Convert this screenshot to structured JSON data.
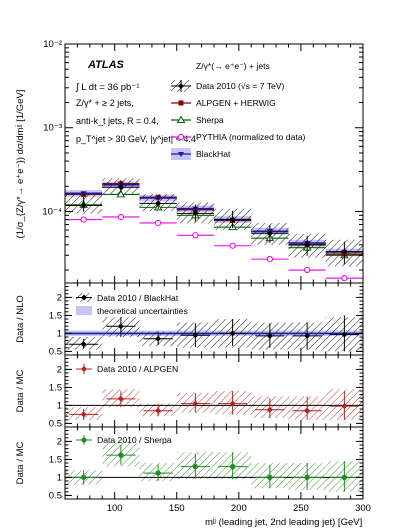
{
  "chart_data": {
    "type": "line",
    "main": {
      "ylabel": "(1/σ_{Z/γ*→ e⁺e⁻}) dσ/dmʲʲ [1/GeV]",
      "yscale": "log",
      "ylim": [
        1.4e-05,
        0.01
      ],
      "ytick_labels": [
        "10⁻²",
        "10⁻³",
        "10⁻⁴"
      ],
      "xlim": [
        60,
        300
      ],
      "bins": [
        [
          60,
          90
        ],
        [
          90,
          120
        ],
        [
          120,
          150
        ],
        [
          150,
          180
        ],
        [
          180,
          210
        ],
        [
          210,
          240
        ],
        [
          240,
          270
        ],
        [
          270,
          300
        ]
      ],
      "annotation": {
        "atlas": "ATLAS",
        "lumi": "∫ L dt = 36 pb⁻¹",
        "lines": [
          "Z/γ* + ≥ 2 jets,",
          "anti-k_t jets, R = 0.4,",
          "p_T^jet > 30 GeV, |y^jet| < 4.4"
        ]
      },
      "legend_title": "Z/γ*(→ e⁺e⁻) + jets",
      "series": [
        {
          "name": "Data 2010 (√s = 7 TeV)",
          "kind": "data",
          "color": "#000000",
          "values": [
            0.000118,
            0.000195,
            0.000125,
            9.5e-05,
            8e-05,
            5.5e-05,
            4e-05,
            3.3e-05
          ],
          "band_lo": [
            9.4e-05,
            0.00016,
            0.000101,
            7.2e-05,
            6e-05,
            4e-05,
            2.8e-05,
            2.2e-05
          ],
          "band_hi": [
            0.000158,
            0.00025,
            0.000162,
            0.000128,
            0.000108,
            7.3e-05,
            5.4e-05,
            4.6e-05
          ]
        },
        {
          "name": "ALPGEN + HERWIG",
          "kind": "alpgen",
          "color": "#8b0000",
          "values": [
            0.00016,
            0.000215,
            0.000148,
            0.000105,
            7.8e-05,
            5.8e-05,
            4e-05,
            3.1e-05
          ]
        },
        {
          "name": "Sherpa",
          "kind": "sherpa",
          "color": "#006400",
          "values": [
            0.00012,
            0.00016,
            0.000112,
            9e-05,
            6.5e-05,
            4.8e-05,
            3.7e-05,
            3e-05
          ]
        },
        {
          "name": "PYTHIA (normalized to data)",
          "kind": "pythia",
          "color": "#ee00ee",
          "values": [
            8e-05,
            8.6e-05,
            7.3e-05,
            5.2e-05,
            3.9e-05,
            2.7e-05,
            2e-05,
            1.6e-05
          ]
        },
        {
          "name": "BlackHat",
          "kind": "blackhat",
          "color": "#1a1aa0",
          "values": [
            0.000165,
            0.000208,
            0.000145,
            0.000108,
            8e-05,
            5.8e-05,
            4.2e-05,
            3.3e-05
          ],
          "band_lo": [
            0.00015,
            0.00019,
            0.000132,
            9.9e-05,
            7.3e-05,
            5.3e-05,
            3.8e-05,
            3e-05
          ],
          "band_hi": [
            0.00018,
            0.000228,
            0.000158,
            0.000118,
            8.8e-05,
            6.4e-05,
            4.6e-05,
            3.6e-05
          ]
        }
      ]
    },
    "ratios": [
      {
        "ylabel": "Data / NLO",
        "ylim": [
          0.4,
          2.4
        ],
        "ticks": [
          "0.5",
          "1",
          "1.5",
          "2"
        ],
        "legend": [
          "Data 2010 / BlackHat",
          "theoretical uncertainties"
        ],
        "color": "#000000",
        "marker": "diamond",
        "values": [
          0.7,
          1.2,
          0.85,
          0.95,
          1.0,
          0.93,
          0.93,
          0.97
        ],
        "err_lo": [
          0.58,
          0.9,
          0.68,
          0.62,
          0.65,
          0.6,
          0.55,
          0.5
        ],
        "err_hi": [
          0.85,
          1.45,
          1.05,
          1.28,
          1.4,
          1.28,
          1.3,
          1.5
        ],
        "band_lo": [
          0.55,
          0.9,
          0.65,
          0.6,
          0.6,
          0.55,
          0.55,
          0.5
        ],
        "band_hi": [
          0.9,
          1.45,
          1.05,
          1.3,
          1.4,
          1.3,
          1.3,
          1.45
        ],
        "theory_lo": [
          0.93,
          0.93,
          0.93,
          0.93,
          0.93,
          0.93,
          0.93,
          0.93
        ],
        "theory_hi": [
          1.08,
          1.08,
          1.08,
          1.08,
          1.08,
          1.08,
          1.08,
          1.08
        ]
      },
      {
        "ylabel": "Data / MC",
        "ylim": [
          0.4,
          2.4
        ],
        "ticks": [
          "0.5",
          "1",
          "1.5",
          "2"
        ],
        "legend": [
          "Data 2010 / ALPGEN"
        ],
        "color": "#b22222",
        "marker": "diamond",
        "values": [
          0.75,
          1.18,
          0.85,
          1.05,
          1.05,
          0.88,
          0.85,
          0.98
        ],
        "err_lo": [
          0.6,
          0.95,
          0.7,
          0.8,
          0.75,
          0.65,
          0.6,
          0.6
        ],
        "err_hi": [
          0.9,
          1.4,
          1.05,
          1.35,
          1.4,
          1.2,
          1.25,
          1.4
        ],
        "band_lo": [
          0.6,
          0.95,
          0.7,
          0.8,
          0.75,
          0.65,
          0.6,
          0.6
        ],
        "band_hi": [
          0.95,
          1.45,
          1.05,
          1.35,
          1.4,
          1.25,
          1.25,
          1.45
        ]
      },
      {
        "ylabel": "Data / MC",
        "ylim": [
          0.4,
          2.4
        ],
        "ticks": [
          "0.5",
          "1",
          "1.5",
          "2"
        ],
        "legend": [
          "Data 2010 / Sherpa"
        ],
        "color": "#228b22",
        "marker": "circle",
        "values": [
          1.0,
          1.62,
          1.12,
          1.3,
          1.3,
          1.0,
          1.0,
          1.0
        ],
        "err_lo": [
          0.8,
          1.35,
          0.9,
          0.95,
          0.95,
          0.7,
          0.65,
          0.6
        ],
        "err_hi": [
          1.2,
          1.9,
          1.35,
          1.65,
          1.7,
          1.35,
          1.4,
          1.45
        ],
        "band_lo": [
          0.8,
          1.3,
          0.9,
          0.95,
          0.95,
          0.7,
          0.65,
          0.6
        ],
        "band_hi": [
          1.2,
          1.95,
          1.4,
          1.7,
          1.7,
          1.4,
          1.4,
          1.45
        ]
      }
    ],
    "x": {
      "label": "mʲʲ (leading jet, 2nd leading jet) [GeV]",
      "tick_values": [
        100,
        150,
        200,
        250,
        300
      ],
      "tick_labels": [
        "100",
        "150",
        "200",
        "250",
        "300"
      ]
    }
  }
}
